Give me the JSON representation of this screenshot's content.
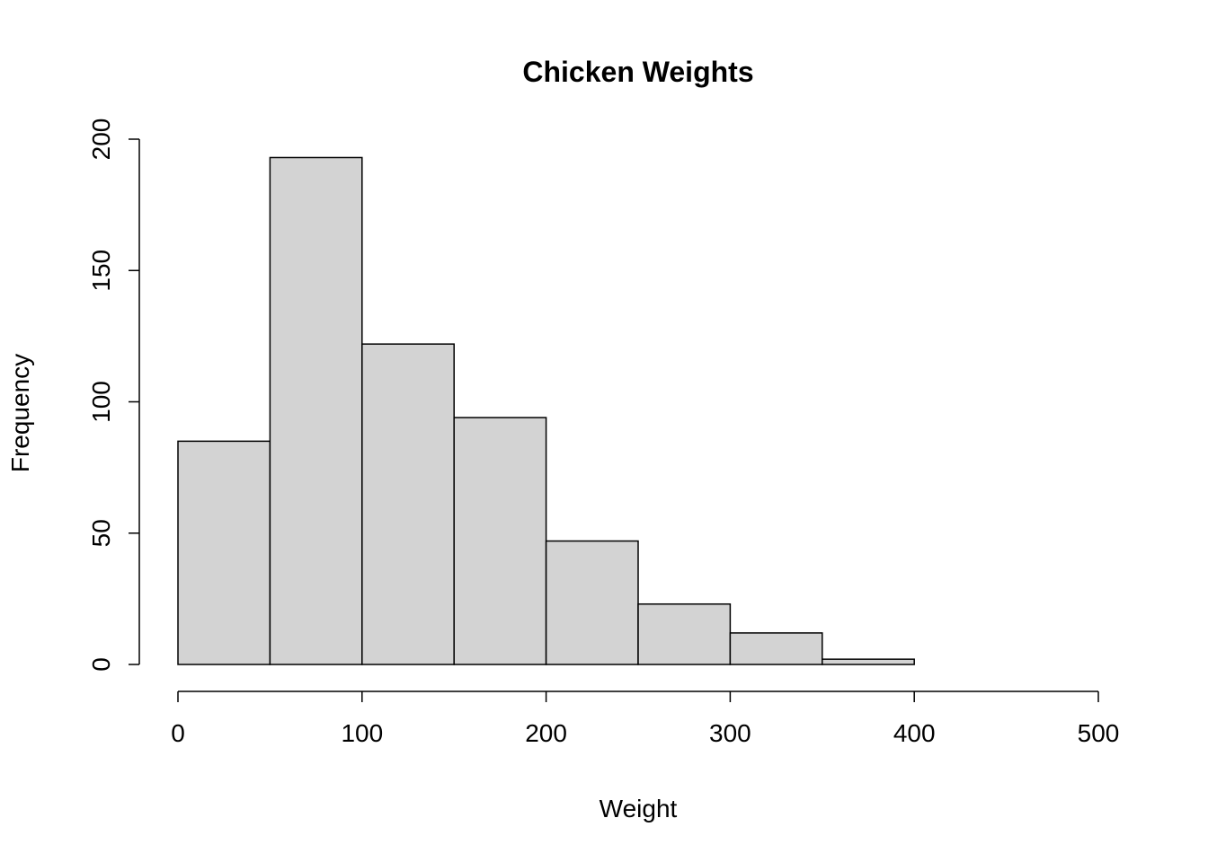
{
  "chart_data": {
    "type": "bar",
    "subtype": "histogram",
    "title": "Chicken Weights",
    "xlabel": "Weight",
    "ylabel": "Frequency",
    "bin_width": 50,
    "bin_edges": [
      0,
      50,
      100,
      150,
      200,
      250,
      300,
      350,
      400
    ],
    "values": [
      85,
      193,
      122,
      94,
      47,
      23,
      12,
      2
    ],
    "x_ticks": [
      0,
      100,
      200,
      300,
      400,
      500
    ],
    "y_ticks": [
      0,
      50,
      100,
      150,
      200
    ],
    "xlim": [
      0,
      500
    ],
    "ylim": [
      0,
      200
    ],
    "bar_fill": "#d3d3d3",
    "bar_stroke": "#000000",
    "axis_color": "#000000",
    "background": "#ffffff",
    "grid": false,
    "legend": false
  }
}
